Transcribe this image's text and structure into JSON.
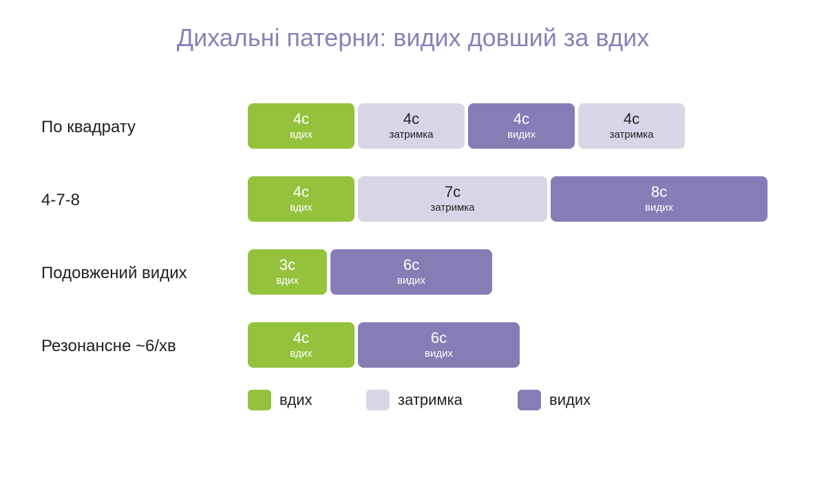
{
  "title": "Дихальні патерни: видих довший за вдих",
  "colors": {
    "inhale": "#94c23d",
    "hold": "#d8d5e6",
    "exhale": "#877db6",
    "title": "#8a80b8"
  },
  "patterns": [
    {
      "label": "По квадрату",
      "segments": [
        {
          "phase": "inhale",
          "seconds": 4,
          "duration": "4с",
          "name": "вдих"
        },
        {
          "phase": "hold",
          "seconds": 4,
          "duration": "4с",
          "name": "затримка"
        },
        {
          "phase": "exhale",
          "seconds": 4,
          "duration": "4с",
          "name": "видих"
        },
        {
          "phase": "hold",
          "seconds": 4,
          "duration": "4с",
          "name": "затримка"
        }
      ]
    },
    {
      "label": "4-7-8",
      "segments": [
        {
          "phase": "inhale",
          "seconds": 4,
          "duration": "4с",
          "name": "вдих"
        },
        {
          "phase": "hold",
          "seconds": 7,
          "duration": "7с",
          "name": "затримка"
        },
        {
          "phase": "exhale",
          "seconds": 8,
          "duration": "8с",
          "name": "видих"
        }
      ]
    },
    {
      "label": "Подовжений видих",
      "segments": [
        {
          "phase": "inhale",
          "seconds": 3,
          "duration": "3с",
          "name": "вдих"
        },
        {
          "phase": "exhale",
          "seconds": 6,
          "duration": "6с",
          "name": "видих"
        }
      ]
    },
    {
      "label": "Резонансне ~6/хв",
      "segments": [
        {
          "phase": "inhale",
          "seconds": 4,
          "duration": "4с",
          "name": "вдих"
        },
        {
          "phase": "exhale",
          "seconds": 6,
          "duration": "6с",
          "name": "видих"
        }
      ]
    }
  ],
  "legend": [
    {
      "phase": "inhale",
      "label": "вдих"
    },
    {
      "phase": "hold",
      "label": "затримка"
    },
    {
      "phase": "exhale",
      "label": "видих"
    }
  ]
}
